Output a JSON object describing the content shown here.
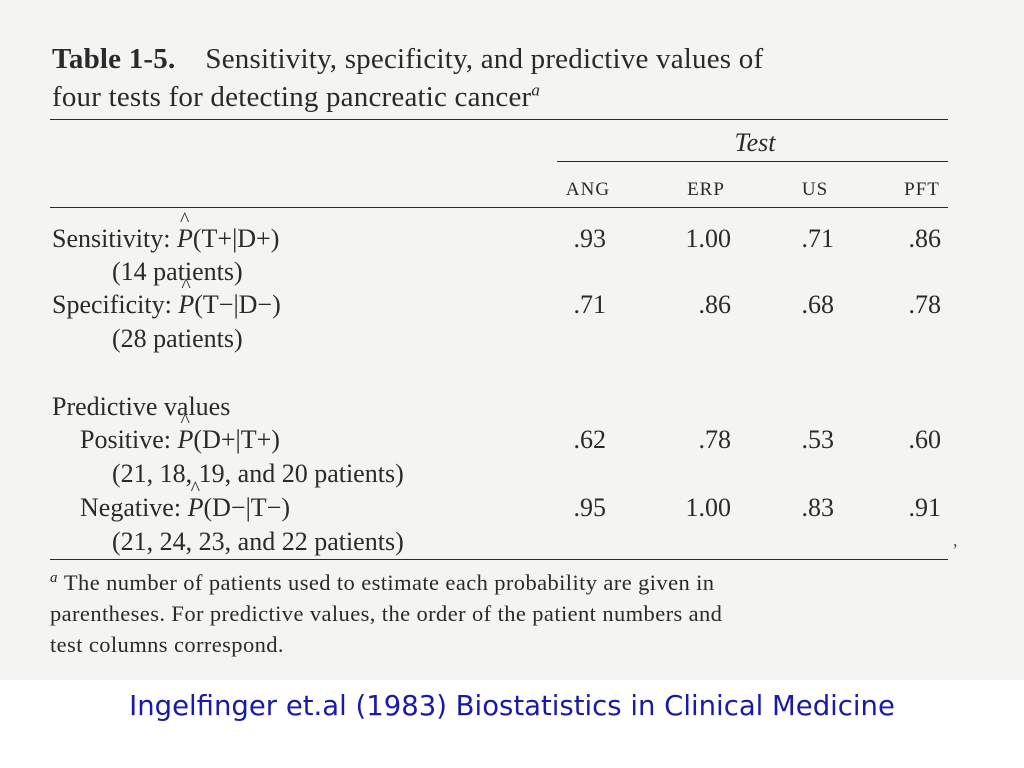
{
  "table": {
    "number": "Table 1-5.",
    "title_line1": "Sensitivity, specificity, and predictive values of",
    "title_line2": "four tests for detecting pancreatic cancer",
    "title_footnote_mark": "a",
    "spanner_label": "Test",
    "columns": [
      "ANG",
      "ERP",
      "US",
      "PFT"
    ],
    "rows": [
      {
        "label_prefix": "Sensitivity: ",
        "p": "P",
        "label_suffix": "(T+|D+)",
        "note": "(14 patients)",
        "values": [
          ".93",
          "1.00",
          ".71",
          ".86"
        ]
      },
      {
        "label_prefix": "Specificity: ",
        "p": "P",
        "label_suffix": "(T−|D−)",
        "note": "(28 patients)",
        "values": [
          ".71",
          ".86",
          ".68",
          ".78"
        ]
      },
      {
        "section_heading": "Predictive values"
      },
      {
        "label_prefix": "Positive: ",
        "p": "P",
        "label_suffix": "(D+|T+)",
        "note": "(21, 18, 19, and 20 patients)",
        "values": [
          ".62",
          ".78",
          ".53",
          ".60"
        ]
      },
      {
        "label_prefix": "Negative: ",
        "p": "P",
        "label_suffix": "(D−|T−)",
        "note": "(21, 24, 23, and 22 patients)",
        "values": [
          ".95",
          "1.00",
          ".83",
          ".91"
        ]
      }
    ],
    "footnote_mark": "a",
    "footnote_lines": [
      "The number of patients used to estimate each probability are given in",
      "parentheses. For predictive values, the order of the patient numbers and",
      "test columns correspond."
    ]
  },
  "credit": "Ingelfinger et.al (1983) Biostatistics in Clinical Medicine",
  "stray_mark": ","
}
